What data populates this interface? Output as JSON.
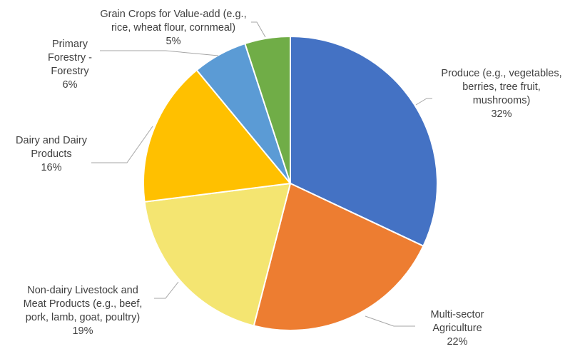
{
  "chart_data": {
    "type": "pie",
    "slices": [
      {
        "label_lines": [
          "Produce (e.g., vegetables,",
          "berries, tree fruit,",
          "mushrooms)"
        ],
        "pct_label": "32%",
        "value": 32,
        "color": "#4472C4"
      },
      {
        "label_lines": [
          "Multi-sector",
          "Agriculture"
        ],
        "pct_label": "22%",
        "value": 22,
        "color": "#ED7D31"
      },
      {
        "label_lines": [
          "Non-dairy Livestock and",
          "Meat Products (e.g., beef,",
          "pork, lamb, goat, poultry)"
        ],
        "pct_label": "19%",
        "value": 19,
        "color": "#F4E571"
      },
      {
        "label_lines": [
          "Dairy and Dairy",
          "Products"
        ],
        "pct_label": "16%",
        "value": 16,
        "color": "#FFC000"
      },
      {
        "label_lines": [
          "Primary",
          "Forestry -",
          "Forestry"
        ],
        "pct_label": "6%",
        "value": 6,
        "color": "#5B9BD5"
      },
      {
        "label_lines": [
          "Grain Crops for Value-add (e.g.,",
          "rice, wheat flour, cornmeal)"
        ],
        "pct_label": "5%",
        "value": 5,
        "color": "#70AD47"
      }
    ],
    "legend": "none",
    "data_labels": "outside with leader lines"
  }
}
